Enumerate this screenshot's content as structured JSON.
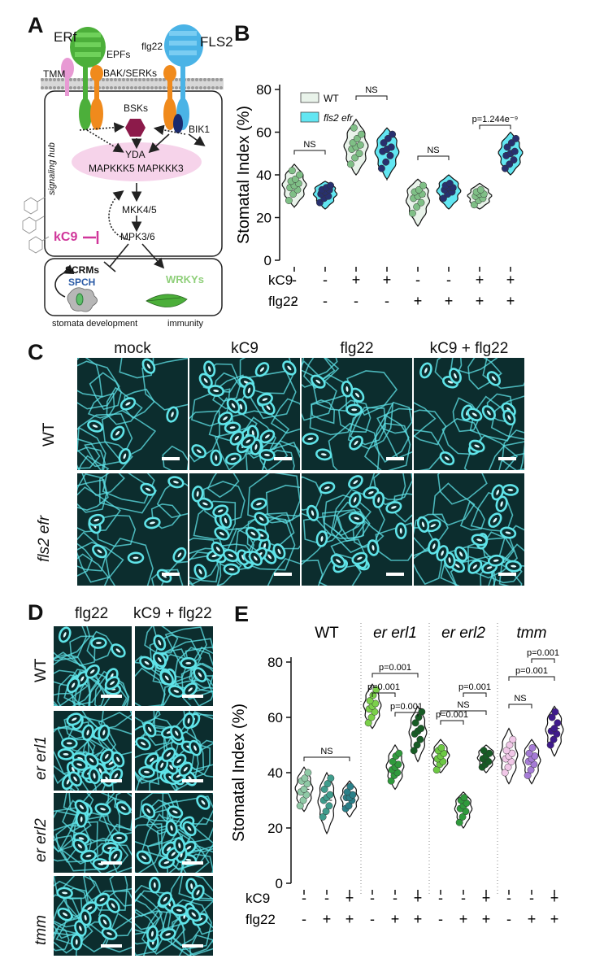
{
  "panels": {
    "a": "A",
    "b": "B",
    "c": "C",
    "d": "D",
    "e": "E"
  },
  "panel_a": {
    "erf": "ERf",
    "epfs": "EPFs",
    "flg22": "flg22",
    "fls2": "FLS2",
    "tmm": "TMM",
    "bak_serks": "BAK/SERKs",
    "bsks": "BSKs",
    "bik1": "BIK1",
    "yda": "YDA",
    "mapkkks": "MAPKKK5 MAPKKK3",
    "signaling_hub": "signaling hub",
    "mkk": "MKK4/5",
    "mpk": "MPK3/6",
    "kc9": "kC9",
    "scrms": "SCRMs",
    "spch": "SPCH",
    "wrkys": "WRKYs",
    "stomata_dev": "stomata development",
    "immunity": "immunity",
    "colors": {
      "erf": "#4caf3a",
      "fls2": "#4ab3e6",
      "bsk": "#8c1a4a",
      "bik1": "#1a2a6e",
      "hub": "#f6d3ea",
      "kc9": "#d0369a",
      "spch": "#2a5aa6",
      "wrky": "#8fcf7a",
      "orange": "#f08a1c",
      "tmm": "#e89ad4"
    }
  },
  "chart_data": [
    {
      "id": "B",
      "type": "violin",
      "ylabel": "Stomatal Index (%)",
      "ylim": [
        0,
        80
      ],
      "yticks": [
        0,
        20,
        40,
        60,
        80
      ],
      "legend": [
        {
          "name": "WT",
          "color": "#e9f3ea"
        },
        {
          "name": "fls2 efr",
          "color": "#62e6f2"
        }
      ],
      "legend_position": "top-left",
      "condition_rows": [
        {
          "name": "kC9",
          "values": [
            "-",
            "-",
            "+",
            "+",
            "-",
            "-",
            "+",
            "+"
          ]
        },
        {
          "name": "flg22",
          "values": [
            "-",
            "-",
            "-",
            "-",
            "+",
            "+",
            "+",
            "+"
          ]
        }
      ],
      "groups": [
        {
          "genotype": "WT",
          "median": 35,
          "range": [
            25,
            45
          ],
          "points": [
            28,
            31,
            33,
            34,
            35,
            36,
            37,
            38,
            40,
            42
          ]
        },
        {
          "genotype": "fls2 efr",
          "median": 32,
          "range": [
            24,
            37
          ],
          "points": [
            27,
            29,
            30,
            31,
            32,
            33,
            33,
            34,
            35
          ]
        },
        {
          "genotype": "WT",
          "median": 53,
          "range": [
            40,
            66
          ],
          "points": [
            45,
            48,
            50,
            52,
            53,
            54,
            55,
            57,
            59,
            62
          ]
        },
        {
          "genotype": "fls2 efr",
          "median": 52,
          "range": [
            38,
            62
          ],
          "points": [
            43,
            46,
            49,
            51,
            52,
            53,
            55,
            57,
            59
          ]
        },
        {
          "genotype": "WT",
          "median": 30,
          "range": [
            16,
            38
          ],
          "points": [
            22,
            25,
            27,
            29,
            30,
            31,
            32,
            33,
            35
          ]
        },
        {
          "genotype": "fls2 efr",
          "median": 33,
          "range": [
            24,
            40
          ],
          "points": [
            29,
            31,
            32,
            33,
            34,
            34,
            35,
            36
          ]
        },
        {
          "genotype": "WT",
          "median": 30,
          "range": [
            24,
            36
          ],
          "points": [
            26,
            28,
            29,
            30,
            31,
            31,
            32,
            33
          ]
        },
        {
          "genotype": "fls2 efr",
          "median": 50,
          "range": [
            40,
            60
          ],
          "points": [
            43,
            45,
            47,
            49,
            50,
            51,
            53,
            55,
            57
          ]
        }
      ],
      "annotations": [
        {
          "between": [
            0,
            1
          ],
          "text": "NS"
        },
        {
          "between": [
            2,
            3
          ],
          "text": "NS"
        },
        {
          "between": [
            4,
            5
          ],
          "text": "NS"
        },
        {
          "between": [
            6,
            7
          ],
          "text": "p=1.244e⁻⁹"
        }
      ]
    },
    {
      "id": "E",
      "type": "violin",
      "ylabel": "Stomatal Index (%)",
      "ylim": [
        0,
        80
      ],
      "yticks": [
        0,
        20,
        40,
        60,
        80
      ],
      "genotype_headers": [
        "WT",
        "er erl1",
        "er erl2",
        "tmm"
      ],
      "condition_rows": [
        {
          "name": "kC9",
          "values": [
            "-",
            "-",
            "+",
            "-",
            "-",
            "+",
            "-",
            "-",
            "+",
            "-",
            "-",
            "+"
          ]
        },
        {
          "name": "flg22",
          "values": [
            "-",
            "+",
            "+",
            "-",
            "+",
            "+",
            "-",
            "+",
            "+",
            "-",
            "+",
            "+"
          ]
        }
      ],
      "groups": [
        {
          "genotype": "WT",
          "median": 34,
          "range": [
            26,
            42
          ],
          "points": [
            28,
            30,
            32,
            33,
            34,
            36,
            37,
            38,
            40
          ],
          "color": "#8fc9a6"
        },
        {
          "genotype": "WT",
          "median": 30,
          "range": [
            18,
            40
          ],
          "points": [
            24,
            26,
            28,
            30,
            31,
            32,
            34,
            36,
            38
          ],
          "color": "#3f9c8c"
        },
        {
          "genotype": "WT",
          "median": 31,
          "range": [
            24,
            37
          ],
          "points": [
            27,
            28,
            30,
            31,
            31,
            32,
            33,
            35
          ],
          "color": "#2a7f88"
        },
        {
          "genotype": "er erl1",
          "median": 64,
          "range": [
            56,
            72
          ],
          "points": [
            58,
            60,
            62,
            63,
            64,
            65,
            66,
            68,
            70
          ],
          "color": "#7bd04a"
        },
        {
          "genotype": "er erl1",
          "median": 42,
          "range": [
            34,
            50
          ],
          "points": [
            37,
            39,
            40,
            41,
            42,
            43,
            44,
            46,
            47
          ],
          "color": "#2f9a3c"
        },
        {
          "genotype": "er erl1",
          "median": 55,
          "range": [
            44,
            64
          ],
          "points": [
            48,
            50,
            52,
            54,
            55,
            56,
            58,
            60,
            62
          ],
          "color": "#175c25"
        },
        {
          "genotype": "er erl2",
          "median": 46,
          "range": [
            40,
            52
          ],
          "points": [
            41,
            43,
            44,
            45,
            46,
            47,
            48,
            49
          ],
          "color": "#6cc843"
        },
        {
          "genotype": "er erl2",
          "median": 28,
          "range": [
            20,
            33
          ],
          "points": [
            22,
            24,
            26,
            27,
            28,
            29,
            30,
            31
          ],
          "color": "#2f9a3c"
        },
        {
          "genotype": "er erl2",
          "median": 46,
          "range": [
            40,
            50
          ],
          "points": [
            42,
            43,
            44,
            45,
            46,
            47,
            48
          ],
          "color": "#175c25"
        },
        {
          "genotype": "tmm",
          "median": 46,
          "range": [
            36,
            56
          ],
          "points": [
            40,
            42,
            44,
            45,
            46,
            47,
            48,
            50,
            52
          ],
          "color": "#f1c8e8"
        },
        {
          "genotype": "tmm",
          "median": 45,
          "range": [
            36,
            52
          ],
          "points": [
            39,
            41,
            43,
            44,
            45,
            46,
            47,
            49
          ],
          "color": "#a57bd6"
        },
        {
          "genotype": "tmm",
          "median": 56,
          "range": [
            46,
            64
          ],
          "points": [
            50,
            52,
            54,
            55,
            56,
            58,
            60,
            62
          ],
          "color": "#3f1a8c"
        }
      ],
      "annotations": [
        {
          "between": [
            0,
            2
          ],
          "text": "NS"
        },
        {
          "between": [
            3,
            4
          ],
          "text": "p=0.001"
        },
        {
          "between": [
            3,
            5
          ],
          "text": "p=0.001"
        },
        {
          "between": [
            4,
            5
          ],
          "text": "p=0.001"
        },
        {
          "between": [
            6,
            7
          ],
          "text": "p=0.001"
        },
        {
          "between": [
            6,
            8
          ],
          "text": "NS"
        },
        {
          "between": [
            7,
            8
          ],
          "text": "p=0.001"
        },
        {
          "between": [
            9,
            10
          ],
          "text": "NS"
        },
        {
          "between": [
            9,
            11
          ],
          "text": "p=0.001"
        },
        {
          "between": [
            10,
            11
          ],
          "text": "p=0.001"
        }
      ]
    }
  ],
  "panel_c": {
    "columns": [
      "mock",
      "kC9",
      "flg22",
      "kC9 + flg22"
    ],
    "rows": [
      "WT",
      "fls2 efr"
    ]
  },
  "panel_d": {
    "columns": [
      "flg22",
      "kC9 + flg22"
    ],
    "rows": [
      "WT",
      "er erl1",
      "er erl2",
      "tmm"
    ]
  },
  "micro_color": "#5fe3e8"
}
